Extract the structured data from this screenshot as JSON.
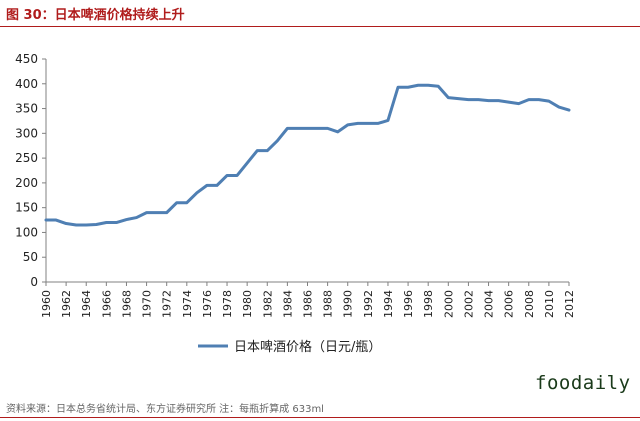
{
  "figure_title": "图 30：日本啤酒价格持续上升",
  "source_note": "资料来源：日本总务省统计局、东方证券研究所 注：每瓶折算成 633ml",
  "watermark": "foodaily",
  "colors": {
    "accent": "#b01c1c",
    "line": "#4f7fb3"
  },
  "chart_data": {
    "type": "line",
    "title": "",
    "xlabel": "",
    "ylabel": "",
    "ylim": [
      0,
      450
    ],
    "yticks": [
      "0",
      "50",
      "100",
      "150",
      "200",
      "250",
      "300",
      "350",
      "400",
      "450"
    ],
    "xticks": [
      "1960",
      "1962",
      "1964",
      "1966",
      "1968",
      "1970",
      "1972",
      "1974",
      "1976",
      "1978",
      "1980",
      "1982",
      "1984",
      "1986",
      "1988",
      "1990",
      "1992",
      "1994",
      "1996",
      "1998",
      "2000",
      "2002",
      "2004",
      "2006",
      "2008",
      "2010",
      "2012"
    ],
    "x": [
      1960,
      1961,
      1962,
      1963,
      1964,
      1965,
      1966,
      1967,
      1968,
      1969,
      1970,
      1971,
      1972,
      1973,
      1974,
      1975,
      1976,
      1977,
      1978,
      1979,
      1980,
      1981,
      1982,
      1983,
      1984,
      1985,
      1986,
      1987,
      1988,
      1989,
      1990,
      1991,
      1992,
      1993,
      1994,
      1995,
      1996,
      1997,
      1998,
      1999,
      2000,
      2001,
      2002,
      2003,
      2004,
      2005,
      2006,
      2007,
      2008,
      2009,
      2010,
      2011,
      2012
    ],
    "series": [
      {
        "name": "日本啤酒价格（日元/瓶）",
        "values": [
          125,
          125,
          118,
          115,
          115,
          116,
          120,
          120,
          126,
          130,
          140,
          140,
          140,
          160,
          160,
          180,
          195,
          195,
          215,
          215,
          240,
          265,
          265,
          285,
          310,
          310,
          310,
          310,
          310,
          303,
          317,
          320,
          320,
          320,
          326,
          393,
          393,
          397,
          397,
          395,
          372,
          370,
          368,
          368,
          366,
          366,
          363,
          360,
          368,
          368,
          365,
          353,
          347
        ]
      }
    ],
    "grid": false,
    "legend_position": "bottom"
  }
}
